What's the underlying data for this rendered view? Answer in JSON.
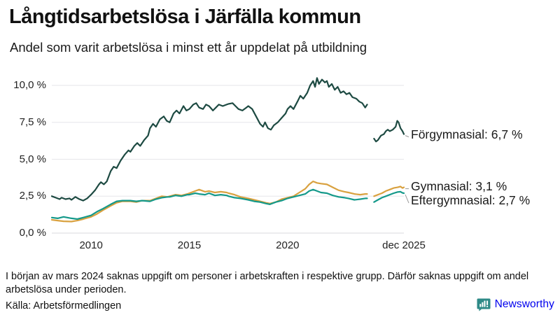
{
  "header": {
    "title": "Långtidsarbetslösa i Järfälla kommun",
    "subtitle": "Andel som varit arbetslösa i minst ett år uppdelat på utbildning"
  },
  "chart_data": {
    "type": "line",
    "title": "Långtidsarbetslösa i Järfälla kommun",
    "subtitle": "Andel som varit arbetslösa i minst ett år uppdelat på utbildning",
    "xlim": [
      2008.0,
      2025.92
    ],
    "ylim": [
      0,
      10
    ],
    "grid": true,
    "grid_color": "#e6e6ea",
    "axis_line_color": "#d8d8dd",
    "connector_color": "#999999",
    "x_ticks": [
      {
        "label": "2010",
        "x": 2010
      },
      {
        "label": "2015",
        "x": 2015
      },
      {
        "label": "2020",
        "x": 2020
      },
      {
        "label": "dec 2025",
        "x": 2025.92
      }
    ],
    "y_ticks": [
      {
        "label": "0,0 %",
        "value": 0
      },
      {
        "label": "2,5 %",
        "value": 2.5
      },
      {
        "label": "5,0 %",
        "value": 5
      },
      {
        "label": "7,5 %",
        "value": 7.5
      },
      {
        "label": "10,0 %",
        "value": 10
      }
    ],
    "gap_note": "data gap around March 2024",
    "series": [
      {
        "name": "Förgymnasial",
        "end_label": "Förgymnasial: 6,7 %",
        "end_value": 6.7,
        "color": "#1d4a42",
        "label_dy": 0,
        "segments": [
          [
            [
              2008.0,
              2.5
            ],
            [
              2008.2,
              2.4
            ],
            [
              2008.4,
              2.3
            ],
            [
              2008.5,
              2.4
            ],
            [
              2008.7,
              2.3
            ],
            [
              2008.9,
              2.35
            ],
            [
              2009.0,
              2.25
            ],
            [
              2009.2,
              2.45
            ],
            [
              2009.4,
              2.3
            ],
            [
              2009.6,
              2.2
            ],
            [
              2009.8,
              2.35
            ],
            [
              2010.0,
              2.6
            ],
            [
              2010.2,
              2.9
            ],
            [
              2010.4,
              3.3
            ],
            [
              2010.5,
              3.45
            ],
            [
              2010.65,
              3.3
            ],
            [
              2010.8,
              3.5
            ],
            [
              2011.0,
              4.2
            ],
            [
              2011.15,
              4.5
            ],
            [
              2011.3,
              4.4
            ],
            [
              2011.5,
              4.9
            ],
            [
              2011.7,
              5.3
            ],
            [
              2011.9,
              5.6
            ],
            [
              2012.0,
              5.5
            ],
            [
              2012.2,
              5.9
            ],
            [
              2012.35,
              6.1
            ],
            [
              2012.5,
              5.9
            ],
            [
              2012.7,
              6.3
            ],
            [
              2012.9,
              6.6
            ],
            [
              2013.0,
              7.1
            ],
            [
              2013.15,
              7.4
            ],
            [
              2013.3,
              7.2
            ],
            [
              2013.5,
              7.7
            ],
            [
              2013.7,
              7.9
            ],
            [
              2013.85,
              7.6
            ],
            [
              2014.0,
              7.5
            ],
            [
              2014.2,
              8.1
            ],
            [
              2014.35,
              8.3
            ],
            [
              2014.5,
              8.1
            ],
            [
              2014.7,
              8.6
            ],
            [
              2014.85,
              8.3
            ],
            [
              2015.0,
              8.4
            ],
            [
              2015.2,
              8.7
            ],
            [
              2015.35,
              8.8
            ],
            [
              2015.5,
              8.5
            ],
            [
              2015.7,
              8.4
            ],
            [
              2015.85,
              8.7
            ],
            [
              2016.0,
              8.6
            ],
            [
              2016.2,
              8.3
            ],
            [
              2016.35,
              8.5
            ],
            [
              2016.5,
              8.7
            ],
            [
              2016.7,
              8.6
            ],
            [
              2016.9,
              8.7
            ],
            [
              2017.0,
              8.75
            ],
            [
              2017.2,
              8.8
            ],
            [
              2017.35,
              8.6
            ],
            [
              2017.5,
              8.4
            ],
            [
              2017.7,
              8.3
            ],
            [
              2017.9,
              8.5
            ],
            [
              2018.0,
              8.6
            ],
            [
              2018.2,
              8.4
            ],
            [
              2018.4,
              7.9
            ],
            [
              2018.6,
              7.4
            ],
            [
              2018.75,
              7.2
            ],
            [
              2018.85,
              7.5
            ],
            [
              2019.0,
              7.1
            ],
            [
              2019.15,
              7.0
            ],
            [
              2019.3,
              7.3
            ],
            [
              2019.5,
              7.5
            ],
            [
              2019.7,
              7.8
            ],
            [
              2019.9,
              8.1
            ],
            [
              2020.0,
              8.4
            ],
            [
              2020.15,
              8.6
            ],
            [
              2020.3,
              8.4
            ],
            [
              2020.5,
              8.9
            ],
            [
              2020.65,
              9.3
            ],
            [
              2020.8,
              9.1
            ],
            [
              2021.0,
              9.5
            ],
            [
              2021.15,
              10.0
            ],
            [
              2021.3,
              10.3
            ],
            [
              2021.4,
              9.9
            ],
            [
              2021.5,
              10.5
            ],
            [
              2021.6,
              10.1
            ],
            [
              2021.75,
              10.4
            ],
            [
              2021.9,
              10.2
            ],
            [
              2022.0,
              10.3
            ],
            [
              2022.1,
              9.9
            ],
            [
              2022.25,
              10.1
            ],
            [
              2022.4,
              9.7
            ],
            [
              2022.55,
              9.9
            ],
            [
              2022.7,
              9.5
            ],
            [
              2022.85,
              9.6
            ],
            [
              2023.0,
              9.4
            ],
            [
              2023.15,
              9.5
            ],
            [
              2023.3,
              9.2
            ],
            [
              2023.5,
              9.1
            ],
            [
              2023.65,
              8.9
            ],
            [
              2023.8,
              8.8
            ],
            [
              2023.95,
              8.5
            ],
            [
              2024.05,
              8.7
            ]
          ],
          [
            [
              2024.4,
              6.4
            ],
            [
              2024.5,
              6.2
            ],
            [
              2024.6,
              6.3
            ],
            [
              2024.75,
              6.6
            ],
            [
              2024.9,
              6.7
            ],
            [
              2025.0,
              6.9
            ],
            [
              2025.1,
              7.0
            ],
            [
              2025.2,
              6.9
            ],
            [
              2025.35,
              7.0
            ],
            [
              2025.5,
              7.2
            ],
            [
              2025.58,
              7.6
            ],
            [
              2025.65,
              7.5
            ],
            [
              2025.75,
              7.1
            ],
            [
              2025.85,
              6.9
            ],
            [
              2025.92,
              6.7
            ]
          ]
        ]
      },
      {
        "name": "Gymnasial",
        "end_label": "Gymnasial: 3,1 %",
        "end_value": 3.1,
        "color": "#d9a13f",
        "label_dy": -2,
        "segments": [
          [
            [
              2008.0,
              0.9
            ],
            [
              2008.3,
              0.85
            ],
            [
              2008.6,
              0.8
            ],
            [
              2009.0,
              0.78
            ],
            [
              2009.3,
              0.85
            ],
            [
              2009.6,
              0.95
            ],
            [
              2010.0,
              1.1
            ],
            [
              2010.3,
              1.3
            ],
            [
              2010.6,
              1.55
            ],
            [
              2011.0,
              1.85
            ],
            [
              2011.3,
              2.05
            ],
            [
              2011.6,
              2.15
            ],
            [
              2012.0,
              2.15
            ],
            [
              2012.3,
              2.1
            ],
            [
              2012.6,
              2.2
            ],
            [
              2013.0,
              2.2
            ],
            [
              2013.3,
              2.35
            ],
            [
              2013.6,
              2.5
            ],
            [
              2013.9,
              2.45
            ],
            [
              2014.0,
              2.5
            ],
            [
              2014.3,
              2.6
            ],
            [
              2014.6,
              2.55
            ],
            [
              2014.9,
              2.65
            ],
            [
              2015.0,
              2.7
            ],
            [
              2015.3,
              2.85
            ],
            [
              2015.5,
              2.95
            ],
            [
              2015.8,
              2.8
            ],
            [
              2016.0,
              2.85
            ],
            [
              2016.3,
              2.75
            ],
            [
              2016.6,
              2.8
            ],
            [
              2016.9,
              2.75
            ],
            [
              2017.0,
              2.7
            ],
            [
              2017.3,
              2.6
            ],
            [
              2017.6,
              2.45
            ],
            [
              2018.0,
              2.35
            ],
            [
              2018.3,
              2.25
            ],
            [
              2018.6,
              2.15
            ],
            [
              2018.9,
              2.05
            ],
            [
              2019.1,
              2.0
            ],
            [
              2019.4,
              2.1
            ],
            [
              2019.7,
              2.3
            ],
            [
              2020.0,
              2.4
            ],
            [
              2020.3,
              2.5
            ],
            [
              2020.6,
              2.75
            ],
            [
              2020.9,
              3.0
            ],
            [
              2021.1,
              3.3
            ],
            [
              2021.3,
              3.5
            ],
            [
              2021.5,
              3.4
            ],
            [
              2021.7,
              3.35
            ],
            [
              2022.0,
              3.3
            ],
            [
              2022.3,
              3.1
            ],
            [
              2022.6,
              2.9
            ],
            [
              2022.9,
              2.8
            ],
            [
              2023.1,
              2.75
            ],
            [
              2023.4,
              2.65
            ],
            [
              2023.7,
              2.6
            ],
            [
              2023.95,
              2.65
            ],
            [
              2024.05,
              2.65
            ]
          ],
          [
            [
              2024.4,
              2.5
            ],
            [
              2024.6,
              2.6
            ],
            [
              2024.8,
              2.7
            ],
            [
              2025.0,
              2.85
            ],
            [
              2025.2,
              2.95
            ],
            [
              2025.4,
              3.05
            ],
            [
              2025.6,
              3.1
            ],
            [
              2025.75,
              3.15
            ],
            [
              2025.85,
              3.05
            ],
            [
              2025.92,
              3.1
            ]
          ]
        ]
      },
      {
        "name": "Eftergymnasial",
        "end_label": "Eftergymnasial: 2,7 %",
        "end_value": 2.7,
        "color": "#14998a",
        "label_dy": 10,
        "segments": [
          [
            [
              2008.0,
              1.05
            ],
            [
              2008.3,
              1.0
            ],
            [
              2008.6,
              1.1
            ],
            [
              2009.0,
              1.0
            ],
            [
              2009.3,
              0.95
            ],
            [
              2009.6,
              1.05
            ],
            [
              2010.0,
              1.2
            ],
            [
              2010.3,
              1.45
            ],
            [
              2010.6,
              1.65
            ],
            [
              2011.0,
              1.95
            ],
            [
              2011.3,
              2.15
            ],
            [
              2011.6,
              2.2
            ],
            [
              2012.0,
              2.2
            ],
            [
              2012.3,
              2.15
            ],
            [
              2012.6,
              2.2
            ],
            [
              2013.0,
              2.15
            ],
            [
              2013.3,
              2.3
            ],
            [
              2013.6,
              2.4
            ],
            [
              2013.9,
              2.45
            ],
            [
              2014.0,
              2.45
            ],
            [
              2014.3,
              2.55
            ],
            [
              2014.6,
              2.5
            ],
            [
              2014.9,
              2.6
            ],
            [
              2015.0,
              2.6
            ],
            [
              2015.3,
              2.7
            ],
            [
              2015.5,
              2.65
            ],
            [
              2015.8,
              2.6
            ],
            [
              2016.0,
              2.7
            ],
            [
              2016.3,
              2.55
            ],
            [
              2016.6,
              2.6
            ],
            [
              2016.9,
              2.55
            ],
            [
              2017.0,
              2.5
            ],
            [
              2017.3,
              2.4
            ],
            [
              2017.6,
              2.35
            ],
            [
              2018.0,
              2.25
            ],
            [
              2018.3,
              2.15
            ],
            [
              2018.6,
              2.1
            ],
            [
              2018.9,
              2.0
            ],
            [
              2019.1,
              1.95
            ],
            [
              2019.4,
              2.1
            ],
            [
              2019.7,
              2.2
            ],
            [
              2020.0,
              2.35
            ],
            [
              2020.3,
              2.45
            ],
            [
              2020.6,
              2.55
            ],
            [
              2020.9,
              2.65
            ],
            [
              2021.1,
              2.85
            ],
            [
              2021.3,
              2.95
            ],
            [
              2021.5,
              2.85
            ],
            [
              2021.7,
              2.75
            ],
            [
              2022.0,
              2.7
            ],
            [
              2022.3,
              2.55
            ],
            [
              2022.6,
              2.45
            ],
            [
              2022.9,
              2.4
            ],
            [
              2023.1,
              2.35
            ],
            [
              2023.4,
              2.25
            ],
            [
              2023.7,
              2.3
            ],
            [
              2023.95,
              2.35
            ],
            [
              2024.05,
              2.35
            ]
          ],
          [
            [
              2024.4,
              2.1
            ],
            [
              2024.6,
              2.25
            ],
            [
              2024.8,
              2.4
            ],
            [
              2025.0,
              2.5
            ],
            [
              2025.2,
              2.6
            ],
            [
              2025.4,
              2.7
            ],
            [
              2025.6,
              2.78
            ],
            [
              2025.75,
              2.8
            ],
            [
              2025.85,
              2.72
            ],
            [
              2025.92,
              2.7
            ]
          ]
        ]
      }
    ]
  },
  "footer": {
    "note": "I början av mars 2024 saknas uppgift om personer i arbetskraften i respektive grupp. Därför saknas uppgift om andel arbetslösa under perioden.",
    "source": "Källa: Arbetsförmedlingen",
    "brand": "Newsworthy",
    "brand_color": "#2e8a87"
  }
}
